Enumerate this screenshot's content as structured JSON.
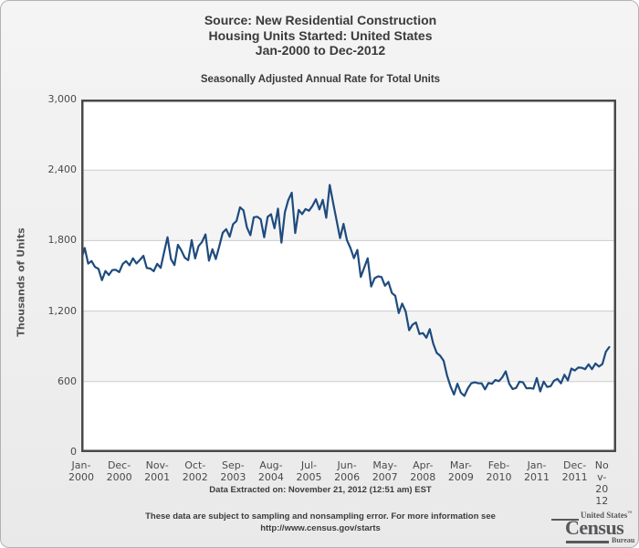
{
  "page": {
    "title_lines": [
      "Source: New Residential Construction",
      "Housing Units Started: United States",
      "Jan-2000 to Dec-2012"
    ],
    "data_extracted": "Data Extracted on: November 21, 2012 (12:51 am) EST",
    "note_line1": "These data are subject to sampling and nonsampling error. For more information see",
    "note_line2": "http://www.census.gov/starts",
    "logo": {
      "top_text": "United States",
      "tm": "™",
      "main": "Census",
      "bottom": "Bureau",
      "color": "#58585b"
    }
  },
  "chart_data": {
    "type": "line",
    "title": "Seasonally Adjusted Annual Rate for Total Units",
    "xlabel": "",
    "ylabel": "Thousands of Units",
    "ylim": [
      0,
      3000
    ],
    "yticks": [
      0,
      600,
      1200,
      1800,
      2400,
      3000
    ],
    "ytick_labels": [
      "0",
      "600",
      "1,200",
      "1,800",
      "2,400",
      "3,000"
    ],
    "x_start": "Jan-2000",
    "x_end": "Dec-2012",
    "x_axis_total_intervals": 155,
    "frequency": "monthly",
    "grid": true,
    "legend": "none",
    "line_width": 2.2,
    "grid_color": "#cbcbcb",
    "axis_color": "#4a4a4a",
    "band_colors": [
      "#ffffff",
      "#f4f4f5"
    ],
    "xticks": [
      {
        "m": 0,
        "lines": [
          "Jan-",
          "2000"
        ]
      },
      {
        "m": 11,
        "lines": [
          "Dec-",
          "2000"
        ]
      },
      {
        "m": 22,
        "lines": [
          "Nov-",
          "2001"
        ]
      },
      {
        "m": 33,
        "lines": [
          "Oct-",
          "2002"
        ]
      },
      {
        "m": 44,
        "lines": [
          "Sep-",
          "2003"
        ]
      },
      {
        "m": 55,
        "lines": [
          "Aug-",
          "2004"
        ]
      },
      {
        "m": 66,
        "lines": [
          "Jul-",
          "2005"
        ]
      },
      {
        "m": 77,
        "lines": [
          "Jun-",
          "2006"
        ]
      },
      {
        "m": 88,
        "lines": [
          "May-",
          "2007"
        ]
      },
      {
        "m": 99,
        "lines": [
          "Apr-",
          "2008"
        ]
      },
      {
        "m": 110,
        "lines": [
          "Mar-",
          "2009"
        ]
      },
      {
        "m": 121,
        "lines": [
          "Feb-",
          "2010"
        ]
      },
      {
        "m": 132,
        "lines": [
          "Jan-",
          "2011"
        ]
      },
      {
        "m": 143,
        "lines": [
          "Dec-",
          "2011"
        ]
      },
      {
        "m": 154,
        "lines": [
          "No",
          "v-",
          "20",
          "12"
        ],
        "dx": -12
      }
    ],
    "series": [
      {
        "name": "Housing Units Started - Total (SAAR)",
        "color": "#1e4b7d",
        "start_month": "Jan-2000",
        "end_month": "Oct-2012",
        "values": [
          1636,
          1737,
          1604,
          1626,
          1575,
          1559,
          1463,
          1541,
          1507,
          1549,
          1551,
          1532,
          1600,
          1625,
          1590,
          1649,
          1605,
          1636,
          1670,
          1567,
          1562,
          1540,
          1602,
          1568,
          1698,
          1829,
          1642,
          1592,
          1764,
          1717,
          1655,
          1633,
          1804,
          1648,
          1753,
          1788,
          1853,
          1629,
          1726,
          1643,
          1751,
          1867,
          1897,
          1833,
          1939,
          1967,
          2083,
          2057,
          1911,
          1846,
          1998,
          2003,
          1981,
          1828,
          2002,
          2024,
          1905,
          2072,
          1782,
          2042,
          2144,
          2207,
          1864,
          2061,
          2025,
          2068,
          2054,
          2095,
          2151,
          2065,
          2147,
          1994,
          2273,
          2119,
          1969,
          1821,
          1942,
          1802,
          1737,
          1650,
          1720,
          1491,
          1570,
          1649,
          1409,
          1480,
          1495,
          1490,
          1415,
          1448,
          1354,
          1330,
          1183,
          1264,
          1197,
          1037,
          1084,
          1103,
          1005,
          1013,
          973,
          1046,
          923,
          844,
          820,
          777,
          652,
          560,
          490,
          582,
          505,
          478,
          540,
          585,
          594,
          586,
          585,
          534,
          588,
          581,
          614,
          604,
          636,
          687,
          583,
          536,
          546,
          599,
          594,
          543,
          545,
          539,
          630,
          517,
          600,
          554,
          561,
          608,
          623,
          585,
          658,
          610,
          711,
          694,
          720,
          718,
          706,
          747,
          706,
          754,
          728,
          749,
          854,
          894
        ]
      }
    ]
  }
}
